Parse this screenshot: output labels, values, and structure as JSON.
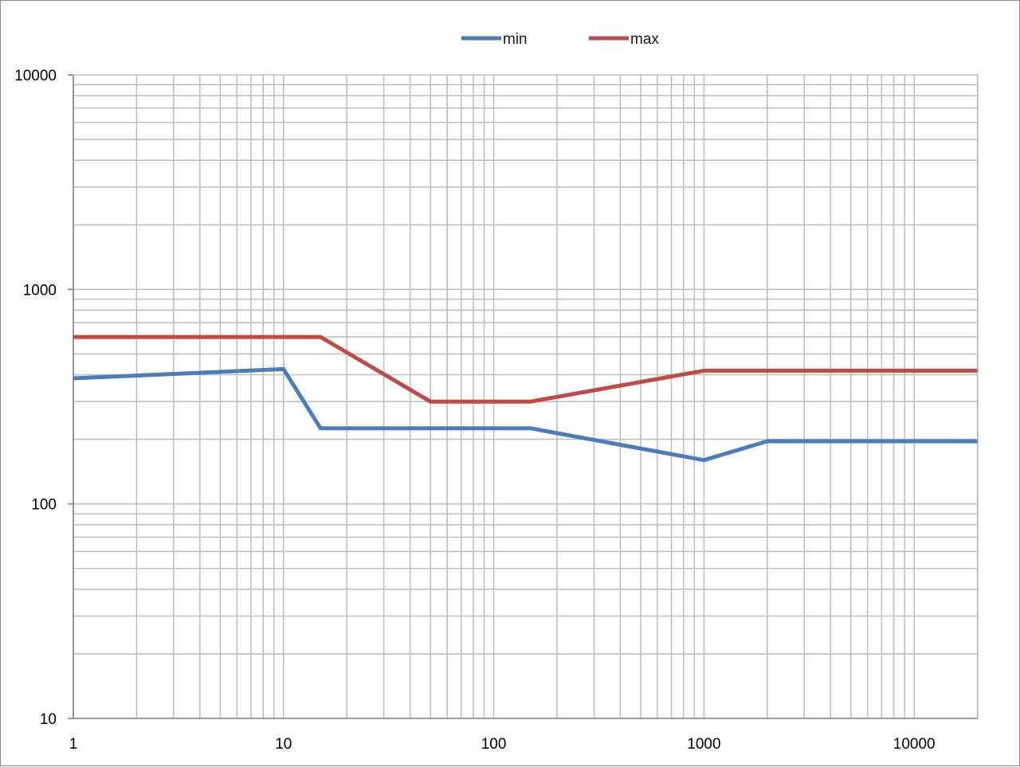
{
  "chart_data": {
    "type": "line",
    "x_scale": "log",
    "y_scale": "log",
    "xlim": [
      1,
      20000
    ],
    "ylim": [
      10,
      10000
    ],
    "x_ticks": [
      1,
      10,
      100,
      1000,
      10000
    ],
    "y_ticks": [
      10,
      100,
      1000,
      10000
    ],
    "x_tick_labels": [
      "1",
      "10",
      "100",
      "1000",
      "10000"
    ],
    "y_tick_labels": [
      "10",
      "100",
      "1000",
      "10000"
    ],
    "grid": "major and minor",
    "legend_position": "top",
    "series": [
      {
        "name": "min",
        "color": "#4a7ebb",
        "x": [
          1,
          10,
          15,
          150,
          1000,
          2000,
          20000
        ],
        "y": [
          385,
          425,
          225,
          225,
          160,
          196,
          196
        ]
      },
      {
        "name": "max",
        "color": "#be4b48",
        "x": [
          1,
          15,
          50,
          150,
          1000,
          20000
        ],
        "y": [
          600,
          600,
          300,
          300,
          418,
          418
        ]
      }
    ]
  }
}
